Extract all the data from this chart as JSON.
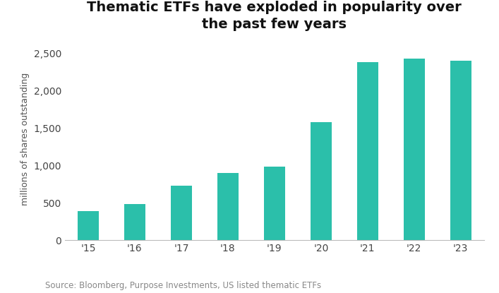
{
  "title": "Thematic ETFs have exploded in popularity over\nthe past few years",
  "categories": [
    "'15",
    "'16",
    "'17",
    "'18",
    "'19",
    "'20",
    "'21",
    "'22",
    "'23"
  ],
  "values": [
    390,
    480,
    730,
    900,
    980,
    1580,
    2380,
    2430,
    2400
  ],
  "bar_color": "#2bbfaa",
  "ylabel": "millions of shares outstanding",
  "ylim": [
    0,
    2700
  ],
  "yticks": [
    0,
    500,
    1000,
    1500,
    2000,
    2500
  ],
  "ytick_labels": [
    "0",
    "500",
    "1,000",
    "1,500",
    "2,000",
    "2,500"
  ],
  "source_text": "Source: Bloomberg, Purpose Investments, US listed thematic ETFs",
  "title_fontsize": 14,
  "label_fontsize": 9,
  "tick_fontsize": 10,
  "source_fontsize": 8.5,
  "background_color": "#ffffff"
}
